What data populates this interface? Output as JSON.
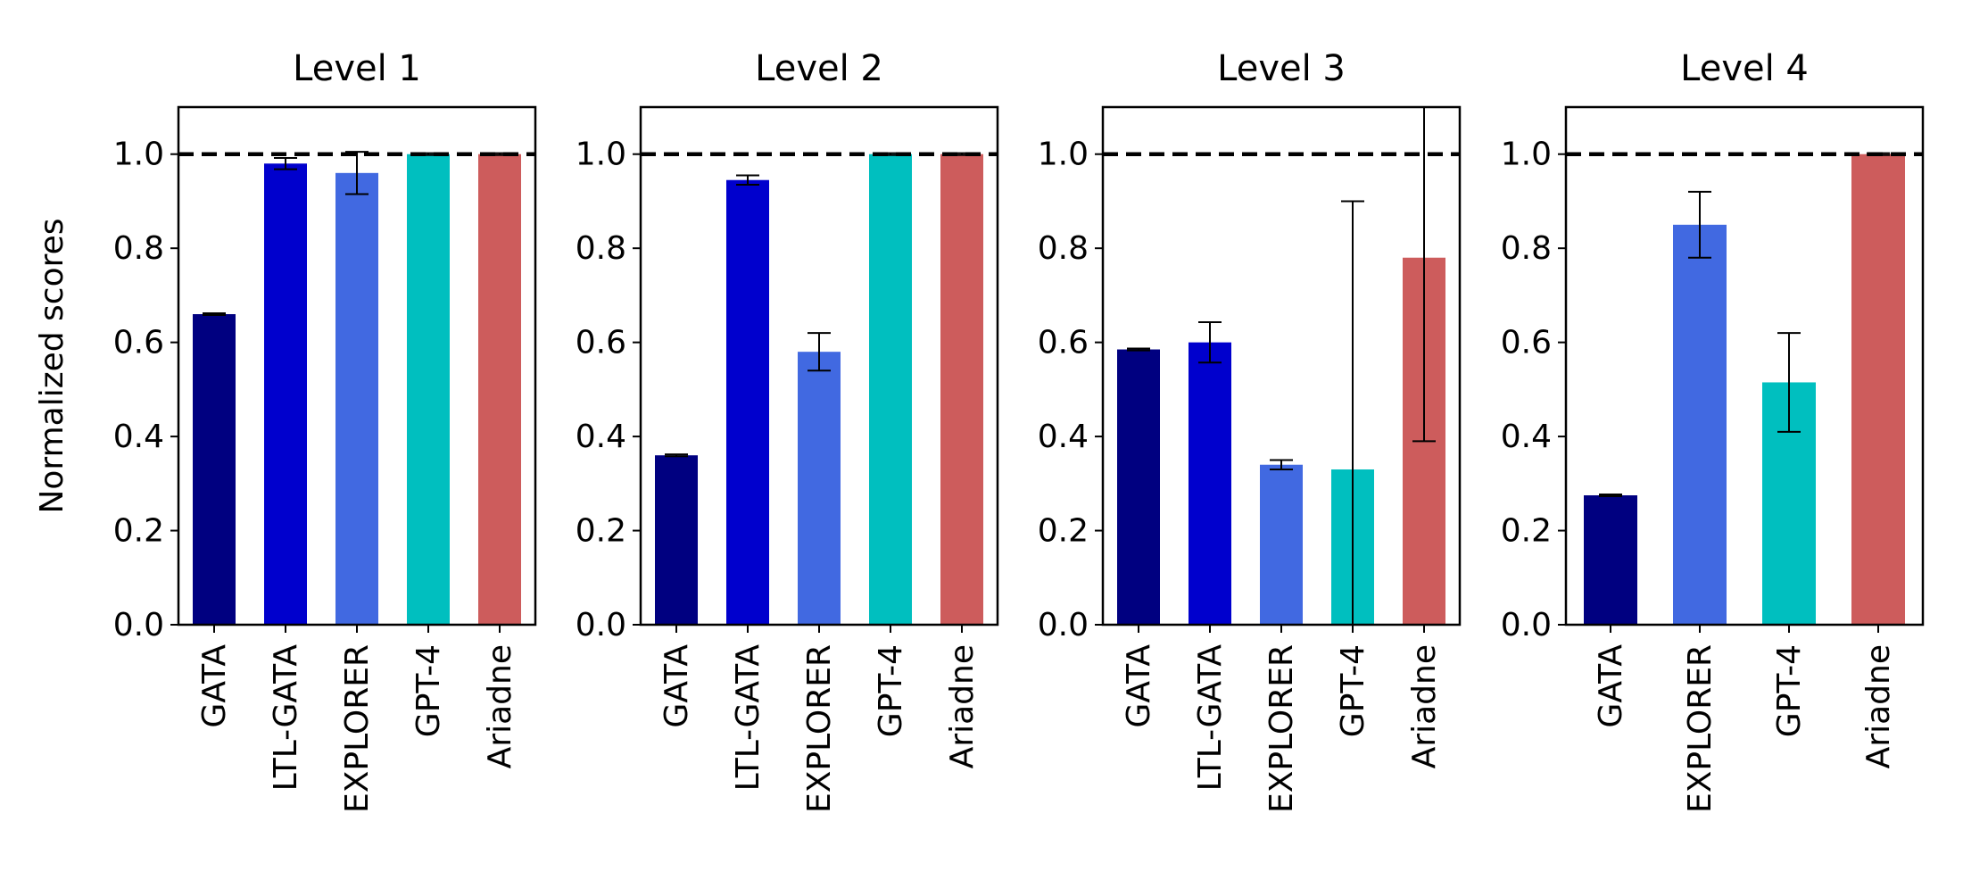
{
  "figure": {
    "ylabel": "Normalized scores"
  },
  "chart_data": [
    {
      "type": "bar",
      "title": "Level 1",
      "ylim": [
        0,
        1.1
      ],
      "yticks": [
        "0.0",
        "0.2",
        "0.4",
        "0.6",
        "0.8",
        "1.0"
      ],
      "reference_line": 1.0,
      "categories": [
        "GATA",
        "LTL-GATA",
        "EXPLORER",
        "GPT-4",
        "Ariadne"
      ],
      "values": [
        0.66,
        0.98,
        0.96,
        1.0,
        1.0
      ],
      "errors": [
        0.002,
        0.012,
        0.045,
        0.002,
        0.002
      ],
      "colors": [
        "#000080",
        "#0000CD",
        "#4169E1",
        "#00BFBF",
        "#CD5C5C"
      ]
    },
    {
      "type": "bar",
      "title": "Level 2",
      "ylim": [
        0,
        1.1
      ],
      "yticks": [
        "0.0",
        "0.2",
        "0.4",
        "0.6",
        "0.8",
        "1.0"
      ],
      "reference_line": 1.0,
      "categories": [
        "GATA",
        "LTL-GATA",
        "EXPLORER",
        "GPT-4",
        "Ariadne"
      ],
      "values": [
        0.36,
        0.945,
        0.58,
        1.0,
        1.0
      ],
      "errors": [
        0.002,
        0.01,
        0.04,
        0.002,
        0.002
      ],
      "colors": [
        "#000080",
        "#0000CD",
        "#4169E1",
        "#00BFBF",
        "#CD5C5C"
      ]
    },
    {
      "type": "bar",
      "title": "Level 3",
      "ylim": [
        0,
        1.1
      ],
      "yticks": [
        "0.0",
        "0.2",
        "0.4",
        "0.6",
        "0.8",
        "1.0"
      ],
      "reference_line": 1.0,
      "categories": [
        "GATA",
        "LTL-GATA",
        "EXPLORER",
        "GPT-4",
        "Ariadne"
      ],
      "values": [
        0.585,
        0.6,
        0.34,
        0.33,
        0.78
      ],
      "errors": [
        0.002,
        0.043,
        0.01,
        0.57,
        0.39
      ],
      "colors": [
        "#000080",
        "#0000CD",
        "#4169E1",
        "#00BFBF",
        "#CD5C5C"
      ]
    },
    {
      "type": "bar",
      "title": "Level 4",
      "ylim": [
        0,
        1.1
      ],
      "yticks": [
        "0.0",
        "0.2",
        "0.4",
        "0.6",
        "0.8",
        "1.0"
      ],
      "reference_line": 1.0,
      "categories": [
        "GATA",
        "EXPLORER",
        "GPT-4",
        "Ariadne"
      ],
      "values": [
        0.275,
        0.85,
        0.515,
        1.0
      ],
      "errors": [
        0.002,
        0.07,
        0.105,
        0.002
      ],
      "colors": [
        "#000080",
        "#4169E1",
        "#00BFBF",
        "#CD5C5C"
      ]
    }
  ]
}
